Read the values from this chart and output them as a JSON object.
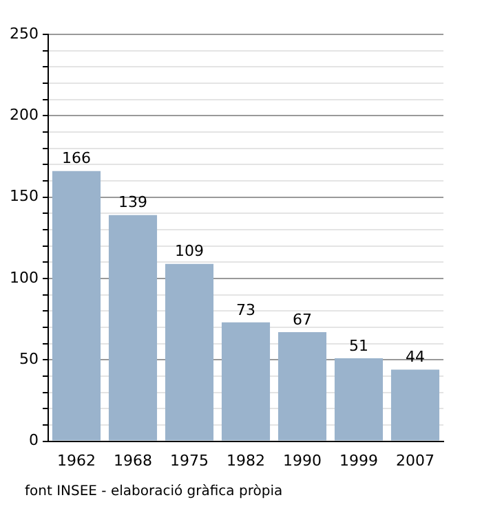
{
  "chart_data": {
    "type": "bar",
    "categories": [
      "1962",
      "1968",
      "1975",
      "1982",
      "1990",
      "1999",
      "2007"
    ],
    "values": [
      166,
      139,
      109,
      73,
      67,
      51,
      44
    ],
    "color": "#9ab3cc",
    "ylim": [
      0,
      250
    ],
    "yticks": [
      0,
      {
        "value": 10,
        "label": null
      },
      {
        "value": 20,
        "label": null
      },
      {
        "value": 30,
        "label": null
      },
      {
        "value": 40,
        "label": null
      },
      50,
      {
        "value": 60,
        "label": null
      },
      {
        "value": 70,
        "label": null
      },
      {
        "value": 80,
        "label": null
      },
      {
        "value": 90,
        "label": null
      },
      100,
      {
        "value": 110,
        "label": null
      },
      {
        "value": 120,
        "label": null
      },
      {
        "value": 130,
        "label": null
      },
      {
        "value": 140,
        "label": null
      },
      150,
      {
        "value": 160,
        "label": null
      },
      {
        "value": 170,
        "label": null
      },
      {
        "value": 180,
        "label": null
      },
      {
        "value": 190,
        "label": null
      },
      200,
      {
        "value": 210,
        "label": null
      },
      {
        "value": 220,
        "label": null
      },
      {
        "value": 230,
        "label": null
      },
      {
        "value": 240,
        "label": null
      },
      250
    ],
    "grid": "y",
    "data_labels": true,
    "annotations": [
      "font INSEE - elaboració gràfica pròpia"
    ]
  }
}
